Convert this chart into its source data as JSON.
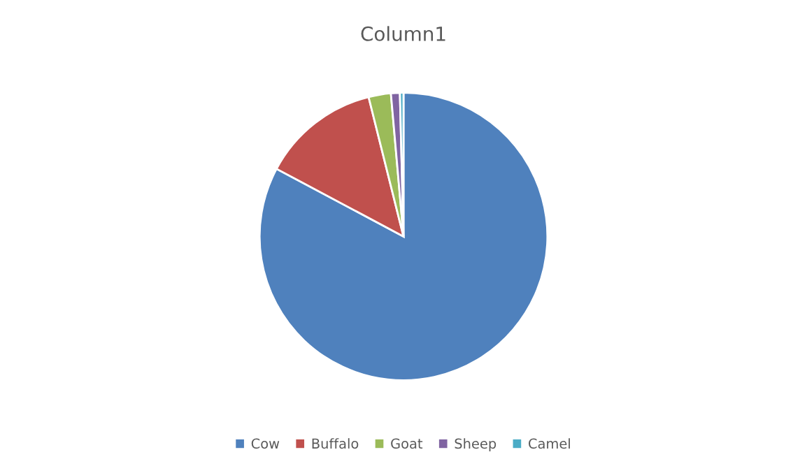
{
  "chart_data": {
    "type": "pie",
    "title": "Column1",
    "categories": [
      "Cow",
      "Buffalo",
      "Goat",
      "Sheep",
      "Camel"
    ],
    "values": [
      82.8,
      13.3,
      2.5,
      1.0,
      0.4
    ],
    "colors": [
      "#4f81bd",
      "#c0504d",
      "#9bbb59",
      "#8064a2",
      "#4bacc6"
    ],
    "legend": "bottom"
  }
}
